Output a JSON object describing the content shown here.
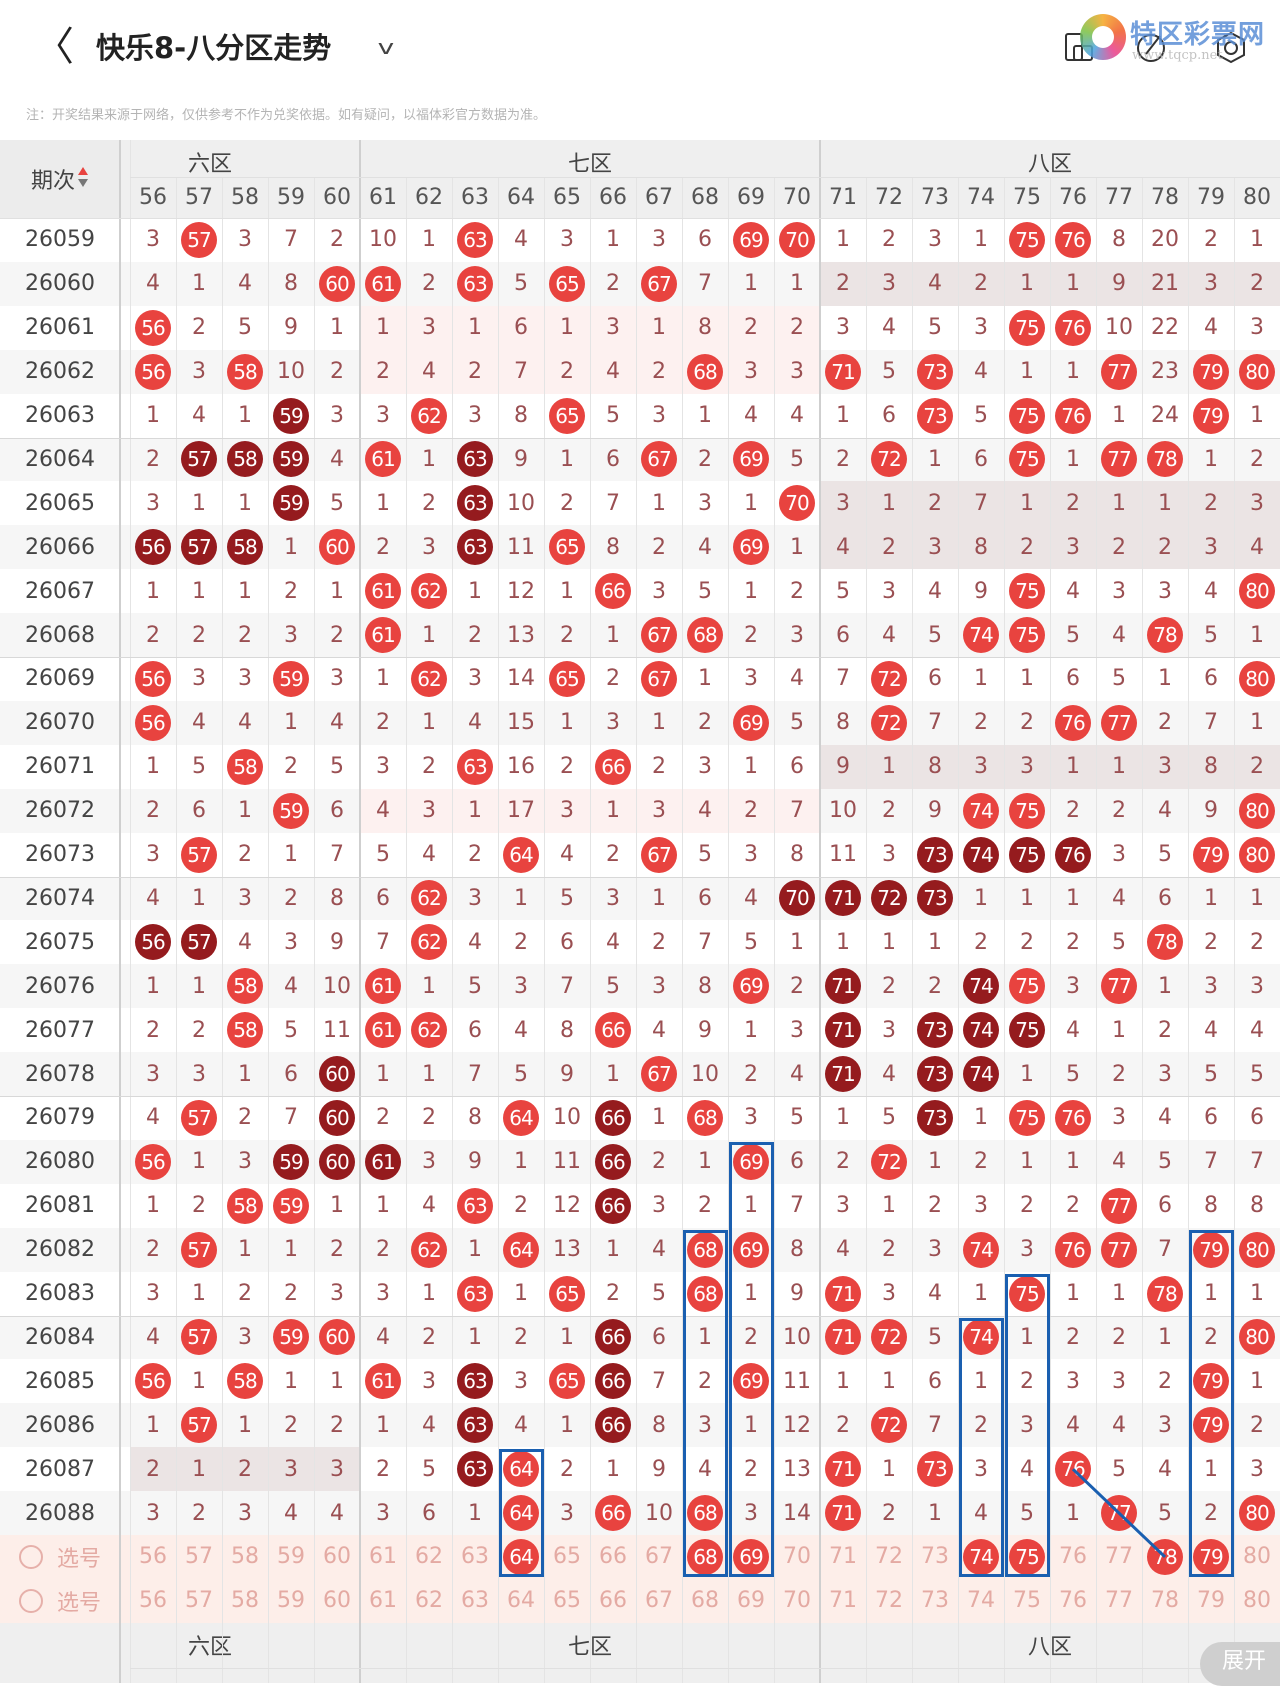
{
  "header": {
    "back_icon": "chevron-left-icon",
    "back_glyph": "〈",
    "title": "快乐8-八分区走势",
    "dropdown_glyph": "v",
    "icons": [
      "phone-rotate-icon",
      "edit-icon",
      "camera-icon"
    ]
  },
  "watermark": {
    "name": "特区彩票网",
    "url": "www.tqcp.net"
  },
  "note": "注：开奖结果来源于网络，仅供参考不作为兑奖依据。如有疑问，以福体彩官方数据为准。",
  "table": {
    "period_header": "期次",
    "sort_icon": "sort-updown-icon",
    "zones": [
      {
        "label": "六区",
        "first": 56,
        "last": 60
      },
      {
        "label": "七区",
        "first": 61,
        "last": 70
      },
      {
        "label": "八区",
        "first": 71,
        "last": 80
      }
    ],
    "columns": [
      "56",
      "57",
      "58",
      "59",
      "60",
      "61",
      "62",
      "63",
      "64",
      "65",
      "66",
      "67",
      "68",
      "69",
      "70",
      "71",
      "72",
      "73",
      "74",
      "75",
      "76",
      "77",
      "78",
      "79",
      "80"
    ],
    "legend": {
      "r": "hit",
      "d": "repeat-hit"
    },
    "rows": [
      {
        "period": "26059",
        "cells": [
          "3",
          "r57",
          "3",
          "7",
          "2",
          "10",
          "1",
          "r63",
          "4",
          "3",
          "1",
          "3",
          "6",
          "r69",
          "r70",
          "1",
          "2",
          "3",
          "1",
          "r75",
          "r76",
          "8",
          "20",
          "2",
          "1"
        ]
      },
      {
        "period": "26060",
        "cells": [
          "4",
          "1",
          "4",
          "8",
          "r60",
          "r61",
          "2",
          "r63",
          "5",
          "r65",
          "2",
          "r67",
          "7",
          "1",
          "1",
          "2",
          "3",
          "4",
          "2",
          "1",
          "1",
          "9",
          "21",
          "3",
          "2"
        ]
      },
      {
        "period": "26061",
        "cells": [
          "r56",
          "2",
          "5",
          "9",
          "1",
          "1",
          "3",
          "1",
          "6",
          "1",
          "3",
          "1",
          "8",
          "2",
          "2",
          "3",
          "4",
          "5",
          "3",
          "r75",
          "r76",
          "10",
          "22",
          "4",
          "3"
        ]
      },
      {
        "period": "26062",
        "cells": [
          "r56",
          "3",
          "r58",
          "10",
          "2",
          "2",
          "4",
          "2",
          "7",
          "2",
          "4",
          "2",
          "r68",
          "3",
          "3",
          "r71",
          "5",
          "r73",
          "4",
          "1",
          "1",
          "r77",
          "23",
          "r79",
          "r80"
        ]
      },
      {
        "period": "26063",
        "cells": [
          "1",
          "4",
          "1",
          "d59",
          "3",
          "3",
          "r62",
          "3",
          "8",
          "r65",
          "5",
          "3",
          "1",
          "4",
          "4",
          "1",
          "6",
          "r73",
          "5",
          "r75",
          "r76",
          "1",
          "24",
          "r79",
          "1"
        ]
      },
      {
        "period": "26064",
        "cells": [
          "2",
          "d57",
          "d58",
          "d59",
          "4",
          "r61",
          "1",
          "d63",
          "9",
          "1",
          "6",
          "r67",
          "2",
          "r69",
          "5",
          "2",
          "r72",
          "1",
          "6",
          "r75",
          "1",
          "r77",
          "r78",
          "1",
          "2"
        ]
      },
      {
        "period": "26065",
        "cells": [
          "3",
          "1",
          "1",
          "d59",
          "5",
          "1",
          "2",
          "d63",
          "10",
          "2",
          "7",
          "1",
          "3",
          "1",
          "r70",
          "3",
          "1",
          "2",
          "7",
          "1",
          "2",
          "1",
          "1",
          "2",
          "3"
        ]
      },
      {
        "period": "26066",
        "cells": [
          "d56",
          "d57",
          "d58",
          "1",
          "r60",
          "2",
          "3",
          "d63",
          "11",
          "r65",
          "8",
          "2",
          "4",
          "r69",
          "1",
          "4",
          "2",
          "3",
          "8",
          "2",
          "3",
          "2",
          "2",
          "3",
          "4"
        ]
      },
      {
        "period": "26067",
        "cells": [
          "1",
          "1",
          "1",
          "2",
          "1",
          "r61",
          "r62",
          "1",
          "12",
          "1",
          "r66",
          "3",
          "5",
          "1",
          "2",
          "5",
          "3",
          "4",
          "9",
          "r75",
          "4",
          "3",
          "3",
          "4",
          "r80"
        ]
      },
      {
        "period": "26068",
        "cells": [
          "2",
          "2",
          "2",
          "3",
          "2",
          "r61",
          "1",
          "2",
          "13",
          "2",
          "1",
          "r67",
          "r68",
          "2",
          "3",
          "6",
          "4",
          "5",
          "r74",
          "r75",
          "5",
          "4",
          "r78",
          "5",
          "1"
        ]
      },
      {
        "period": "26069",
        "cells": [
          "r56",
          "3",
          "3",
          "r59",
          "3",
          "1",
          "r62",
          "3",
          "14",
          "r65",
          "2",
          "r67",
          "1",
          "3",
          "4",
          "7",
          "r72",
          "6",
          "1",
          "1",
          "6",
          "5",
          "1",
          "6",
          "r80"
        ]
      },
      {
        "period": "26070",
        "cells": [
          "r56",
          "4",
          "4",
          "1",
          "4",
          "2",
          "1",
          "4",
          "15",
          "1",
          "3",
          "1",
          "2",
          "r69",
          "5",
          "8",
          "r72",
          "7",
          "2",
          "2",
          "r76",
          "r77",
          "2",
          "7",
          "1"
        ]
      },
      {
        "period": "26071",
        "cells": [
          "1",
          "5",
          "r58",
          "2",
          "5",
          "3",
          "2",
          "r63",
          "16",
          "2",
          "r66",
          "2",
          "3",
          "1",
          "6",
          "9",
          "1",
          "8",
          "3",
          "3",
          "1",
          "1",
          "3",
          "8",
          "2"
        ]
      },
      {
        "period": "26072",
        "cells": [
          "2",
          "6",
          "1",
          "r59",
          "6",
          "4",
          "3",
          "1",
          "17",
          "3",
          "1",
          "3",
          "4",
          "2",
          "7",
          "10",
          "2",
          "9",
          "r74",
          "r75",
          "2",
          "2",
          "4",
          "9",
          "r80"
        ]
      },
      {
        "period": "26073",
        "cells": [
          "3",
          "r57",
          "2",
          "1",
          "7",
          "5",
          "4",
          "2",
          "r64",
          "4",
          "2",
          "r67",
          "5",
          "3",
          "8",
          "11",
          "3",
          "d73",
          "d74",
          "d75",
          "d76",
          "3",
          "5",
          "r79",
          "r80"
        ]
      },
      {
        "period": "26074",
        "cells": [
          "4",
          "1",
          "3",
          "2",
          "8",
          "6",
          "r62",
          "3",
          "1",
          "5",
          "3",
          "1",
          "6",
          "4",
          "d70",
          "d71",
          "d72",
          "d73",
          "1",
          "1",
          "1",
          "4",
          "6",
          "1",
          "1"
        ]
      },
      {
        "period": "26075",
        "cells": [
          "d56",
          "d57",
          "4",
          "3",
          "9",
          "7",
          "r62",
          "4",
          "2",
          "6",
          "4",
          "2",
          "7",
          "5",
          "1",
          "1",
          "1",
          "1",
          "2",
          "2",
          "2",
          "5",
          "r78",
          "2",
          "2"
        ]
      },
      {
        "period": "26076",
        "cells": [
          "1",
          "1",
          "r58",
          "4",
          "10",
          "r61",
          "1",
          "5",
          "3",
          "7",
          "5",
          "3",
          "8",
          "r69",
          "2",
          "d71",
          "2",
          "2",
          "d74",
          "r75",
          "3",
          "r77",
          "1",
          "3",
          "3"
        ]
      },
      {
        "period": "26077",
        "cells": [
          "2",
          "2",
          "r58",
          "5",
          "11",
          "r61",
          "r62",
          "6",
          "4",
          "8",
          "r66",
          "4",
          "9",
          "1",
          "3",
          "d71",
          "3",
          "d73",
          "d74",
          "d75",
          "4",
          "1",
          "2",
          "4",
          "4"
        ]
      },
      {
        "period": "26078",
        "cells": [
          "3",
          "3",
          "1",
          "6",
          "d60",
          "1",
          "1",
          "7",
          "5",
          "9",
          "1",
          "r67",
          "10",
          "2",
          "4",
          "d71",
          "4",
          "d73",
          "d74",
          "1",
          "5",
          "2",
          "3",
          "5",
          "5"
        ]
      },
      {
        "period": "26079",
        "cells": [
          "4",
          "r57",
          "2",
          "7",
          "d60",
          "2",
          "2",
          "8",
          "r64",
          "10",
          "d66",
          "1",
          "r68",
          "3",
          "5",
          "1",
          "5",
          "d73",
          "1",
          "r75",
          "r76",
          "3",
          "4",
          "6",
          "6"
        ]
      },
      {
        "period": "26080",
        "cells": [
          "r56",
          "1",
          "3",
          "d59",
          "d60",
          "d61",
          "3",
          "9",
          "1",
          "11",
          "d66",
          "2",
          "1",
          "r69",
          "6",
          "2",
          "r72",
          "1",
          "2",
          "1",
          "1",
          "4",
          "5",
          "7",
          "7"
        ]
      },
      {
        "period": "26081",
        "cells": [
          "1",
          "2",
          "r58",
          "r59",
          "1",
          "1",
          "4",
          "r63",
          "2",
          "12",
          "d66",
          "3",
          "2",
          "1",
          "7",
          "3",
          "1",
          "2",
          "3",
          "2",
          "2",
          "r77",
          "6",
          "8",
          "8"
        ]
      },
      {
        "period": "26082",
        "cells": [
          "2",
          "r57",
          "1",
          "1",
          "2",
          "2",
          "r62",
          "1",
          "r64",
          "13",
          "1",
          "4",
          "r68",
          "r69",
          "8",
          "4",
          "2",
          "3",
          "r74",
          "3",
          "r76",
          "r77",
          "7",
          "r79",
          "r80"
        ]
      },
      {
        "period": "26083",
        "cells": [
          "3",
          "1",
          "2",
          "2",
          "3",
          "3",
          "1",
          "r63",
          "1",
          "r65",
          "2",
          "5",
          "r68",
          "1",
          "9",
          "r71",
          "3",
          "4",
          "1",
          "r75",
          "1",
          "1",
          "r78",
          "1",
          "1"
        ]
      },
      {
        "period": "26084",
        "cells": [
          "4",
          "r57",
          "3",
          "r59",
          "r60",
          "4",
          "2",
          "1",
          "2",
          "1",
          "d66",
          "6",
          "1",
          "2",
          "10",
          "r71",
          "r72",
          "5",
          "r74",
          "1",
          "2",
          "2",
          "1",
          "2",
          "r80"
        ]
      },
      {
        "period": "26085",
        "cells": [
          "r56",
          "1",
          "r58",
          "1",
          "1",
          "r61",
          "3",
          "d63",
          "3",
          "r65",
          "d66",
          "7",
          "2",
          "r69",
          "11",
          "1",
          "1",
          "6",
          "1",
          "2",
          "3",
          "3",
          "2",
          "r79",
          "1"
        ]
      },
      {
        "period": "26086",
        "cells": [
          "1",
          "r57",
          "1",
          "2",
          "2",
          "1",
          "4",
          "d63",
          "4",
          "1",
          "d66",
          "8",
          "3",
          "1",
          "12",
          "2",
          "r72",
          "7",
          "2",
          "3",
          "4",
          "4",
          "3",
          "r79",
          "2"
        ]
      },
      {
        "period": "26087",
        "cells": [
          "2",
          "1",
          "2",
          "3",
          "3",
          "2",
          "5",
          "d63",
          "r64",
          "2",
          "1",
          "9",
          "4",
          "2",
          "13",
          "r71",
          "1",
          "r73",
          "3",
          "4",
          "r76",
          "5",
          "4",
          "1",
          "3"
        ]
      },
      {
        "period": "26088",
        "cells": [
          "3",
          "2",
          "3",
          "4",
          "4",
          "3",
          "6",
          "1",
          "r64",
          "3",
          "r66",
          "10",
          "r68",
          "3",
          "14",
          "r71",
          "2",
          "1",
          "4",
          "5",
          "1",
          "r77",
          "5",
          "2",
          "r80"
        ]
      }
    ],
    "select_rows": [
      {
        "label": "选号",
        "cells": [
          "56",
          "57",
          "58",
          "59",
          "60",
          "61",
          "62",
          "63",
          "r64",
          "65",
          "66",
          "67",
          "r68",
          "r69",
          "70",
          "71",
          "72",
          "73",
          "r74",
          "r75",
          "76",
          "77",
          "r78",
          "r79",
          "80"
        ]
      },
      {
        "label": "选号",
        "cells": [
          "56",
          "57",
          "58",
          "59",
          "60",
          "61",
          "62",
          "63",
          "64",
          "65",
          "66",
          "67",
          "68",
          "69",
          "70",
          "71",
          "72",
          "73",
          "74",
          "75",
          "76",
          "77",
          "78",
          "79",
          "80"
        ]
      }
    ],
    "expand_label": "展开"
  }
}
